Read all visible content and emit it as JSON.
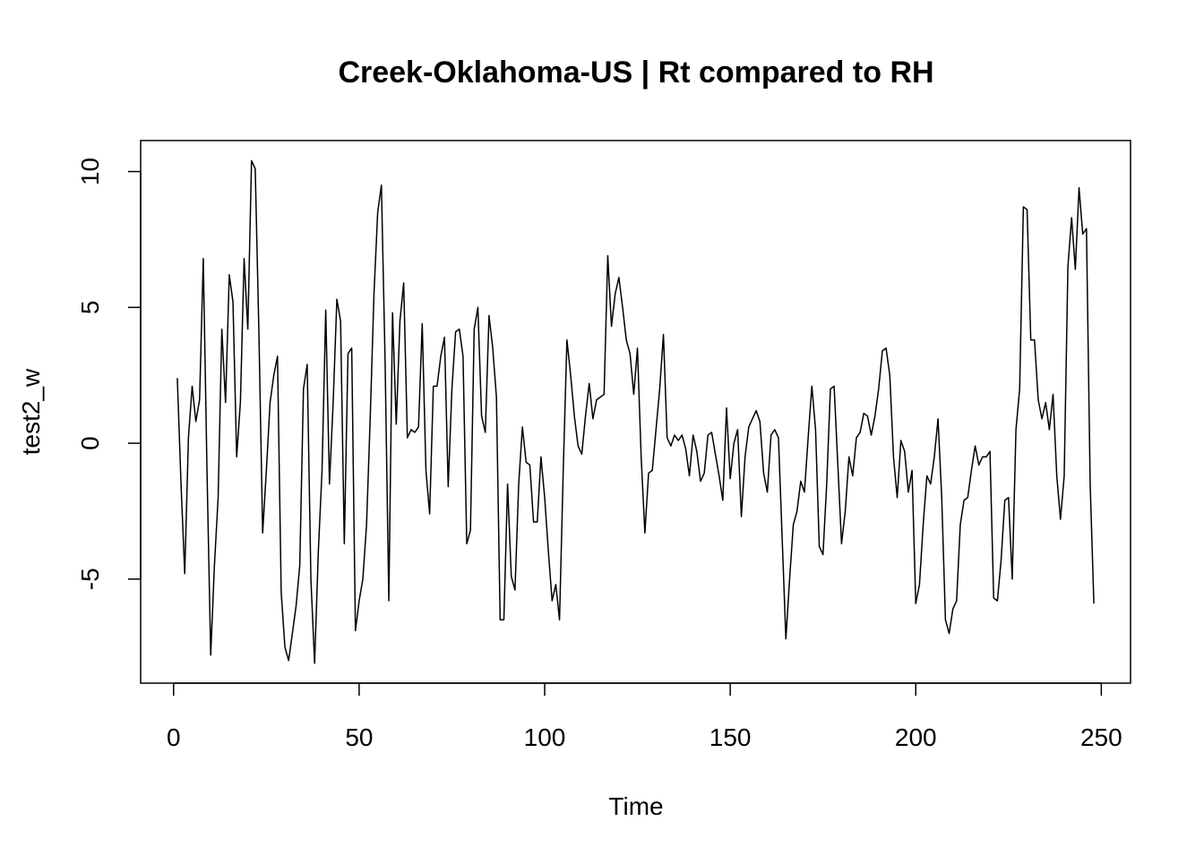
{
  "chart_data": {
    "type": "line",
    "title": "Creek-Oklahoma-US | Rt compared to RH",
    "x_label": "Time",
    "y_label": "test2_w",
    "color": "#000000",
    "xlim": [
      -8.88,
      257.88
    ],
    "ylim": [
      -8.83,
      11.14
    ],
    "xticks": [
      0,
      50,
      100,
      150,
      200,
      250
    ],
    "yticks": [
      -5,
      0,
      5,
      10
    ],
    "x": [
      1,
      2,
      3,
      4,
      5,
      6,
      7,
      8,
      9,
      10,
      11,
      12,
      13,
      14,
      15,
      16,
      17,
      18,
      19,
      20,
      21,
      22,
      23,
      24,
      25,
      26,
      27,
      28,
      29,
      30,
      31,
      32,
      33,
      34,
      35,
      36,
      37,
      38,
      39,
      40,
      41,
      42,
      43,
      44,
      45,
      46,
      47,
      48,
      49,
      50,
      51,
      52,
      53,
      54,
      55,
      56,
      57,
      58,
      59,
      60,
      61,
      62,
      63,
      64,
      65,
      66,
      67,
      68,
      69,
      70,
      71,
      72,
      73,
      74,
      75,
      76,
      77,
      78,
      79,
      80,
      81,
      82,
      83,
      84,
      85,
      86,
      87,
      88,
      89,
      90,
      91,
      92,
      93,
      94,
      95,
      96,
      97,
      98,
      99,
      100,
      101,
      102,
      103,
      104,
      105,
      106,
      107,
      108,
      109,
      110,
      111,
      112,
      113,
      114,
      115,
      116,
      117,
      118,
      119,
      120,
      121,
      122,
      123,
      124,
      125,
      126,
      127,
      128,
      129,
      130,
      131,
      132,
      133,
      134,
      135,
      136,
      137,
      138,
      139,
      140,
      141,
      142,
      143,
      144,
      145,
      146,
      147,
      148,
      149,
      150,
      151,
      152,
      153,
      154,
      155,
      156,
      157,
      158,
      159,
      160,
      161,
      162,
      163,
      164,
      165,
      166,
      167,
      168,
      169,
      170,
      171,
      172,
      173,
      174,
      175,
      176,
      177,
      178,
      179,
      180,
      181,
      182,
      183,
      184,
      185,
      186,
      187,
      188,
      189,
      190,
      191,
      192,
      193,
      194,
      195,
      196,
      197,
      198,
      199,
      200,
      201,
      202,
      203,
      204,
      205,
      206,
      207,
      208,
      209,
      210,
      211,
      212,
      213,
      214,
      215,
      216,
      217,
      218,
      219,
      220,
      221,
      222,
      223,
      224,
      225,
      226,
      227,
      228,
      229,
      230,
      231,
      232,
      233,
      234,
      235,
      236,
      237,
      238,
      239,
      240,
      241,
      242,
      243,
      244,
      245,
      246,
      247,
      248
    ],
    "values": [
      2.4,
      -1.5,
      -4.8,
      0.2,
      2.1,
      0.8,
      1.6,
      6.8,
      -1,
      -7.8,
      -4.5,
      -2,
      4.2,
      1.5,
      6.2,
      5.2,
      -0.5,
      1.5,
      6.8,
      4.2,
      10.4,
      10.1,
      4,
      -3.3,
      -1,
      1.5,
      2.5,
      3.2,
      -5.5,
      -7.5,
      -8,
      -7,
      -6,
      -4.5,
      2,
      2.9,
      -5,
      -8.1,
      -4,
      -1,
      4.9,
      -1.5,
      1.5,
      5.3,
      4.5,
      -3.7,
      3.3,
      3.5,
      -6.9,
      -5.8,
      -5,
      -3,
      1,
      5.5,
      8.5,
      9.5,
      3,
      -5.8,
      4.8,
      0.7,
      4.5,
      5.9,
      0.2,
      0.5,
      0.4,
      0.6,
      4.4,
      -1,
      -2.6,
      2.1,
      2.1,
      3.2,
      3.9,
      -1.6,
      2,
      4.1,
      4.2,
      3.2,
      -3.7,
      -3.2,
      4.2,
      5,
      1,
      0.4,
      4.7,
      3.5,
      1.7,
      -6.5,
      -6.5,
      -1.5,
      -4.9,
      -5.4,
      -1.5,
      0.6,
      -0.7,
      -0.8,
      -2.9,
      -2.9,
      -0.5,
      -2,
      -4,
      -5.8,
      -5.2,
      -6.5,
      -1,
      3.8,
      2.5,
      1,
      -0.1,
      -0.4,
      1,
      2.2,
      0.9,
      1.6,
      1.7,
      1.8,
      6.9,
      4.3,
      5.5,
      6.1,
      5,
      3.8,
      3.3,
      1.8,
      3.5,
      -0.5,
      -3.3,
      -1.1,
      -1,
      0.5,
      2,
      4,
      0.2,
      -0.1,
      0.3,
      0.1,
      0.3,
      -0.2,
      -1.2,
      0.3,
      -0.3,
      -1.4,
      -1.1,
      0.3,
      0.4,
      -0.4,
      -1.2,
      -2.1,
      1.3,
      -1.3,
      0,
      0.5,
      -2.7,
      -0.5,
      0.6,
      0.9,
      1.2,
      0.8,
      -1.1,
      -1.8,
      0.3,
      0.5,
      0.2,
      -3.5,
      -7.2,
      -5,
      -3,
      -2.5,
      -1.4,
      -1.8,
      0.2,
      2.1,
      0.5,
      -3.8,
      -4.1,
      -1.5,
      2,
      2.1,
      -0.8,
      -3.7,
      -2.5,
      -0.5,
      -1.2,
      0.2,
      0.4,
      1.1,
      1,
      0.3,
      1,
      2,
      3.4,
      3.5,
      2.5,
      -0.5,
      -2,
      0.1,
      -0.3,
      -1.8,
      -1,
      -5.9,
      -5.2,
      -3,
      -1.2,
      -1.5,
      -0.5,
      0.9,
      -2,
      -6.5,
      -7,
      -6.1,
      -5.8,
      -3,
      -2.1,
      -2,
      -1,
      -0.1,
      -0.8,
      -0.5,
      -0.5,
      -0.3,
      -5.7,
      -5.8,
      -4.3,
      -2.1,
      -2,
      -5,
      0.5,
      2,
      8.7,
      8.6,
      3.8,
      3.8,
      1.6,
      0.9,
      1.5,
      0.5,
      1.8,
      -1.2,
      -2.8,
      -1.2,
      6.5,
      8.3,
      6.4,
      9.4,
      7.7,
      7.9,
      -1.5,
      -5.9
    ]
  }
}
